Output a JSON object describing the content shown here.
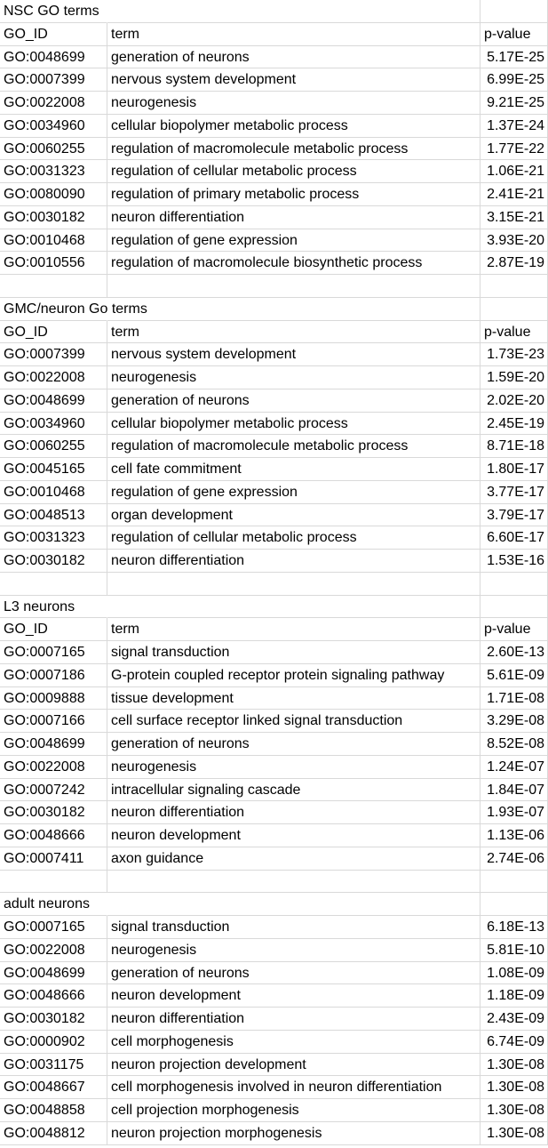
{
  "sections": [
    {
      "title": "NSC GO terms",
      "headers": [
        "GO_ID",
        "term",
        "p-value"
      ],
      "rows": [
        [
          "GO:0048699",
          "generation of neurons",
          "5.17E-25"
        ],
        [
          "GO:0007399",
          "nervous system development",
          "6.99E-25"
        ],
        [
          "GO:0022008",
          "neurogenesis",
          "9.21E-25"
        ],
        [
          "GO:0034960",
          "cellular biopolymer metabolic process",
          "1.37E-24"
        ],
        [
          "GO:0060255",
          "regulation of macromolecule metabolic process",
          "1.77E-22"
        ],
        [
          "GO:0031323",
          "regulation of cellular metabolic process",
          "1.06E-21"
        ],
        [
          "GO:0080090",
          "regulation of primary metabolic process",
          "2.41E-21"
        ],
        [
          "GO:0030182",
          "neuron differentiation",
          "3.15E-21"
        ],
        [
          "GO:0010468",
          "regulation of gene expression",
          "3.93E-20"
        ],
        [
          "GO:0010556",
          "regulation of macromolecule biosynthetic process",
          "2.87E-19"
        ]
      ]
    },
    {
      "title": "GMC/neuron Go terms",
      "headers": [
        "GO_ID",
        "term",
        "p-value"
      ],
      "rows": [
        [
          "GO:0007399",
          "nervous system development",
          "1.73E-23"
        ],
        [
          "GO:0022008",
          "neurogenesis",
          "1.59E-20"
        ],
        [
          "GO:0048699",
          "generation of neurons",
          "2.02E-20"
        ],
        [
          "GO:0034960",
          "cellular biopolymer metabolic process",
          "2.45E-19"
        ],
        [
          "GO:0060255",
          "regulation of macromolecule metabolic process",
          "8.71E-18"
        ],
        [
          "GO:0045165",
          "cell fate commitment",
          "1.80E-17"
        ],
        [
          "GO:0010468",
          "regulation of gene expression",
          "3.77E-17"
        ],
        [
          "GO:0048513",
          "organ development",
          "3.79E-17"
        ],
        [
          "GO:0031323",
          "regulation of cellular metabolic process",
          "6.60E-17"
        ],
        [
          "GO:0030182",
          "neuron differentiation",
          "1.53E-16"
        ]
      ]
    },
    {
      "title": "L3 neurons",
      "headers": [
        "GO_ID",
        "term",
        "p-value"
      ],
      "rows": [
        [
          "GO:0007165",
          "signal transduction",
          "2.60E-13"
        ],
        [
          "GO:0007186",
          "G-protein coupled receptor protein signaling pathway",
          "5.61E-09"
        ],
        [
          "GO:0009888",
          "tissue development",
          "1.71E-08"
        ],
        [
          "GO:0007166",
          "cell surface receptor linked signal transduction",
          "3.29E-08"
        ],
        [
          "GO:0048699",
          "generation of neurons",
          "8.52E-08"
        ],
        [
          "GO:0022008",
          "neurogenesis",
          "1.24E-07"
        ],
        [
          "GO:0007242",
          "intracellular signaling cascade",
          "1.84E-07"
        ],
        [
          "GO:0030182",
          "neuron differentiation",
          "1.93E-07"
        ],
        [
          "GO:0048666",
          "neuron development",
          "1.13E-06"
        ],
        [
          "GO:0007411",
          "axon guidance",
          "2.74E-06"
        ]
      ]
    },
    {
      "title": "adult neurons",
      "rows": [
        [
          "GO:0007165",
          "signal transduction",
          "6.18E-13"
        ],
        [
          "GO:0022008",
          "neurogenesis",
          "5.81E-10"
        ],
        [
          "GO:0048699",
          "generation of neurons",
          "1.08E-09"
        ],
        [
          "GO:0048666",
          "neuron development",
          "1.18E-09"
        ],
        [
          "GO:0030182",
          "neuron differentiation",
          "2.43E-09"
        ],
        [
          "GO:0000902",
          "cell morphogenesis",
          "6.74E-09"
        ],
        [
          "GO:0031175",
          "neuron projection development",
          "1.30E-08"
        ],
        [
          "GO:0048667",
          "cell morphogenesis involved in neuron differentiation",
          "1.30E-08"
        ],
        [
          "GO:0048858",
          "cell projection morphogenesis",
          "1.30E-08"
        ],
        [
          "GO:0048812",
          "neuron projection morphogenesis",
          "1.30E-08"
        ]
      ]
    }
  ]
}
